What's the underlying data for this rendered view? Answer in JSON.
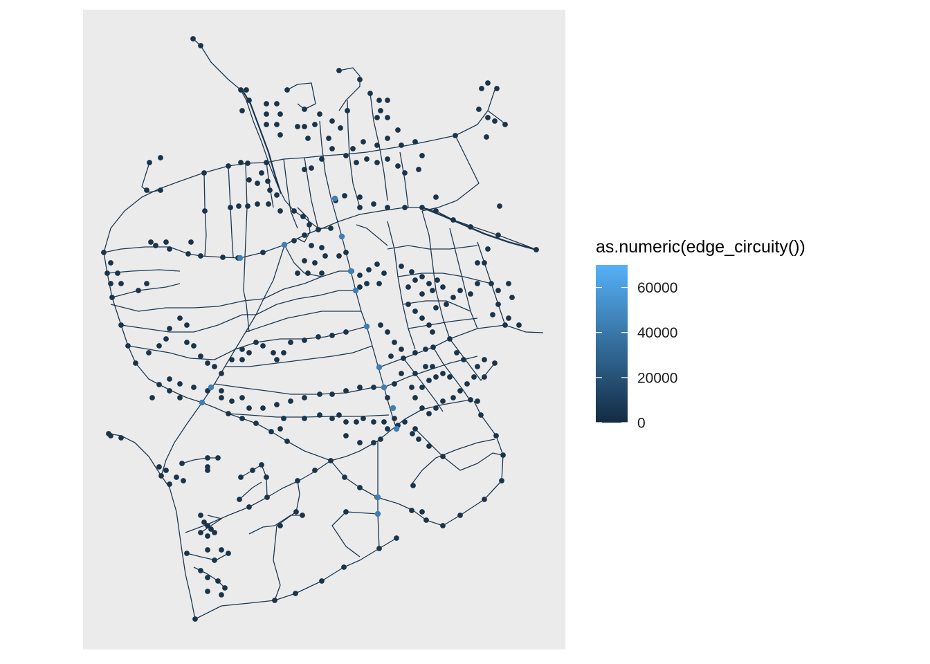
{
  "chart_data": {
    "type": "network",
    "title": "",
    "xlabel": "",
    "ylabel": "",
    "panel_background": "#EBEBEB",
    "axes_visible": false,
    "grid": false,
    "legend": {
      "title": "as.numeric(edge_circuity())",
      "placement": "right",
      "type": "continuous colorbar",
      "range": [
        0,
        70000
      ],
      "ticks": [
        {
          "value": 0,
          "label": "0"
        },
        {
          "value": 20000,
          "label": "20000"
        },
        {
          "value": 40000,
          "label": "40000"
        },
        {
          "value": 60000,
          "label": "60000"
        }
      ],
      "color_low": "#132B43",
      "color_high": "#56B1F7"
    },
    "edge_color": "#1C3650",
    "node_color": "#1A3449",
    "highlight_nodes_color": "#3F7FB5"
  }
}
